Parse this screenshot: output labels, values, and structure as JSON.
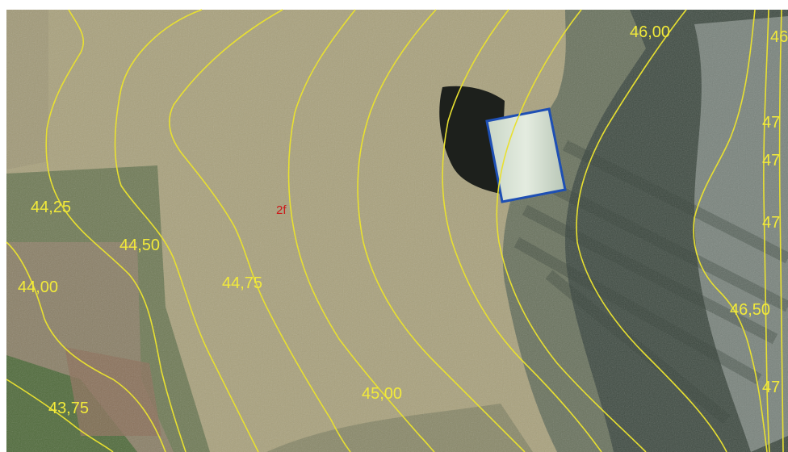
{
  "map": {
    "type": "aerial orthophoto with elevation contours",
    "colors": {
      "contour": "#e8e030",
      "contour_label": "#f2ea3a",
      "parcel_number": "#cc1a1a",
      "building_outline": "#1e4fb4",
      "field": "#a8a07a",
      "trees": "#3e4a40"
    },
    "parcel_number": "2f",
    "contour_labels": [
      {
        "id": "c4375",
        "text": "43,75"
      },
      {
        "id": "c4400",
        "text": "44,00"
      },
      {
        "id": "c4425",
        "text": "44,25"
      },
      {
        "id": "c4450",
        "text": "44,50"
      },
      {
        "id": "c4475",
        "text": "44,75"
      },
      {
        "id": "c4500",
        "text": "45,00"
      },
      {
        "id": "c4600",
        "text": "46,00"
      },
      {
        "id": "c4650",
        "text": "46,50"
      },
      {
        "id": "c46b",
        "text": "46"
      },
      {
        "id": "c47a",
        "text": "47"
      },
      {
        "id": "c47b",
        "text": "47"
      },
      {
        "id": "c47c",
        "text": "47"
      },
      {
        "id": "c47d",
        "text": "47"
      }
    ]
  }
}
